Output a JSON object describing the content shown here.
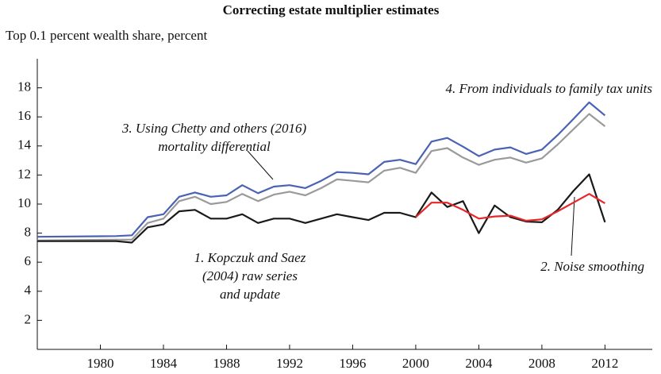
{
  "chart_data": {
    "type": "line",
    "title": "Correcting estate multiplier estimates",
    "subtitle": "Top 0.1 percent wealth share, percent",
    "x": [
      1976,
      1981,
      1982,
      1983,
      1984,
      1985,
      1986,
      1987,
      1988,
      1989,
      1990,
      1991,
      1992,
      1993,
      1994,
      1995,
      1996,
      1997,
      1998,
      1999,
      2000,
      2001,
      2002,
      2003,
      2004,
      2005,
      2006,
      2007,
      2008,
      2009,
      2010,
      2011,
      2012
    ],
    "series": [
      {
        "color": "#1a1a1a",
        "label_lines": [
          "1. Kopczuk and Saez",
          "(2004) raw series",
          "and update"
        ],
        "values": [
          7.45,
          7.45,
          7.35,
          8.4,
          8.6,
          9.5,
          9.6,
          9.0,
          9.0,
          9.3,
          8.7,
          9.0,
          9.0,
          8.7,
          9.0,
          9.3,
          9.1,
          8.9,
          9.4,
          9.4,
          9.1,
          10.8,
          9.8,
          10.2,
          8.0,
          9.9,
          9.1,
          8.8,
          8.75,
          9.6,
          10.9,
          12.05,
          8.75
        ]
      },
      {
        "color": "#e8262a",
        "label_lines": [
          "2. Noise smoothing"
        ],
        "values": [
          null,
          null,
          null,
          null,
          null,
          null,
          null,
          null,
          null,
          null,
          null,
          null,
          null,
          null,
          null,
          null,
          null,
          null,
          null,
          null,
          9.1,
          10.1,
          10.1,
          9.6,
          9.0,
          9.15,
          9.2,
          8.85,
          8.95,
          9.5,
          10.1,
          10.7,
          10.05
        ]
      },
      {
        "color": "#9a9a9a",
        "label_lines": [
          "3. Using Chetty and others (2016)",
          "mortality differential"
        ],
        "values": [
          7.5,
          7.55,
          7.55,
          8.7,
          9.0,
          10.2,
          10.5,
          10.0,
          10.15,
          10.7,
          10.2,
          10.65,
          10.85,
          10.6,
          11.1,
          11.7,
          11.6,
          11.5,
          12.3,
          12.5,
          12.15,
          13.65,
          13.85,
          13.2,
          12.7,
          13.05,
          13.2,
          12.85,
          13.15,
          14.1,
          15.15,
          16.2,
          15.35
        ]
      },
      {
        "color": "#4a62b4",
        "label_lines": [
          "4. From individuals to family tax units"
        ],
        "values": [
          7.75,
          7.8,
          7.85,
          9.1,
          9.3,
          10.5,
          10.8,
          10.5,
          10.6,
          11.3,
          10.75,
          11.2,
          11.3,
          11.1,
          11.6,
          12.2,
          12.15,
          12.05,
          12.9,
          13.05,
          12.75,
          14.3,
          14.55,
          13.95,
          13.3,
          13.75,
          13.9,
          13.45,
          13.75,
          14.75,
          15.85,
          17.0,
          16.1
        ]
      }
    ],
    "xlim": [
      1976,
      2015
    ],
    "xticks": [
      1980,
      1984,
      1988,
      1992,
      1996,
      2000,
      2004,
      2008,
      2012
    ],
    "ylim": [
      0,
      20
    ],
    "yticks": [
      2,
      4,
      6,
      8,
      10,
      12,
      14,
      16,
      18
    ]
  }
}
